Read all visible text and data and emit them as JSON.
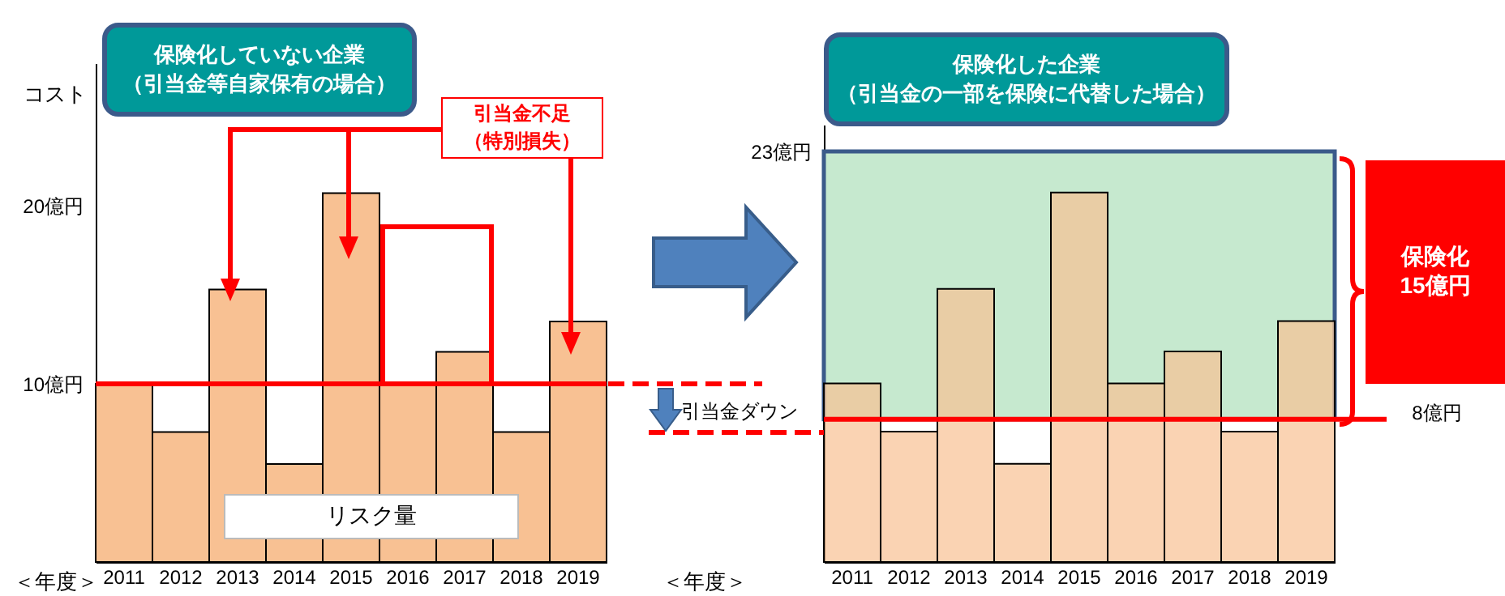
{
  "chart_data": [
    {
      "type": "bar",
      "title": "保険化していない企業",
      "subtitle": "（引当金等自家保有の場合）",
      "ylabel": "コスト",
      "xlabel": "＜年度＞",
      "categories": [
        "2011",
        "2012",
        "2013",
        "2014",
        "2015",
        "2016",
        "2017",
        "2018",
        "2019"
      ],
      "values": [
        10,
        7.3,
        15.3,
        5.5,
        20.7,
        10,
        11.8,
        7.3,
        13.5
      ],
      "color": "#f8c193",
      "ylim": [
        0,
        28
      ],
      "yticks": [
        {
          "value": 10,
          "label": "10億円"
        },
        {
          "value": 20,
          "label": "20億円"
        }
      ],
      "ref_lines": [
        {
          "axis": "y",
          "value": 10,
          "color": "#ff0000"
        }
      ],
      "annotations": [
        "引当金不足（特別損失）",
        "リスク量",
        "引当金ダウン"
      ]
    },
    {
      "type": "bar",
      "title": "保険化した企業",
      "subtitle": "（引当金の一部を保険に代替した場合）",
      "xlabel": "＜年度＞",
      "categories": [
        "2011",
        "2012",
        "2013",
        "2014",
        "2015",
        "2016",
        "2017",
        "2018",
        "2019"
      ],
      "values": [
        10,
        7.3,
        15.3,
        5.5,
        20.7,
        10,
        11.8,
        7.3,
        13.5
      ],
      "color": "#f8c193",
      "ylim": [
        0,
        24.5
      ],
      "yticks": [
        {
          "value": 23,
          "label": "23億円"
        }
      ],
      "ref_lines": [
        {
          "axis": "y",
          "value": 8,
          "label": "8億円",
          "color": "#ff0000"
        }
      ],
      "bands": [
        {
          "axis": "y",
          "from": 8,
          "to": 23,
          "label": "保険化15億円",
          "color": "#c6e9cf"
        }
      ]
    }
  ]
}
